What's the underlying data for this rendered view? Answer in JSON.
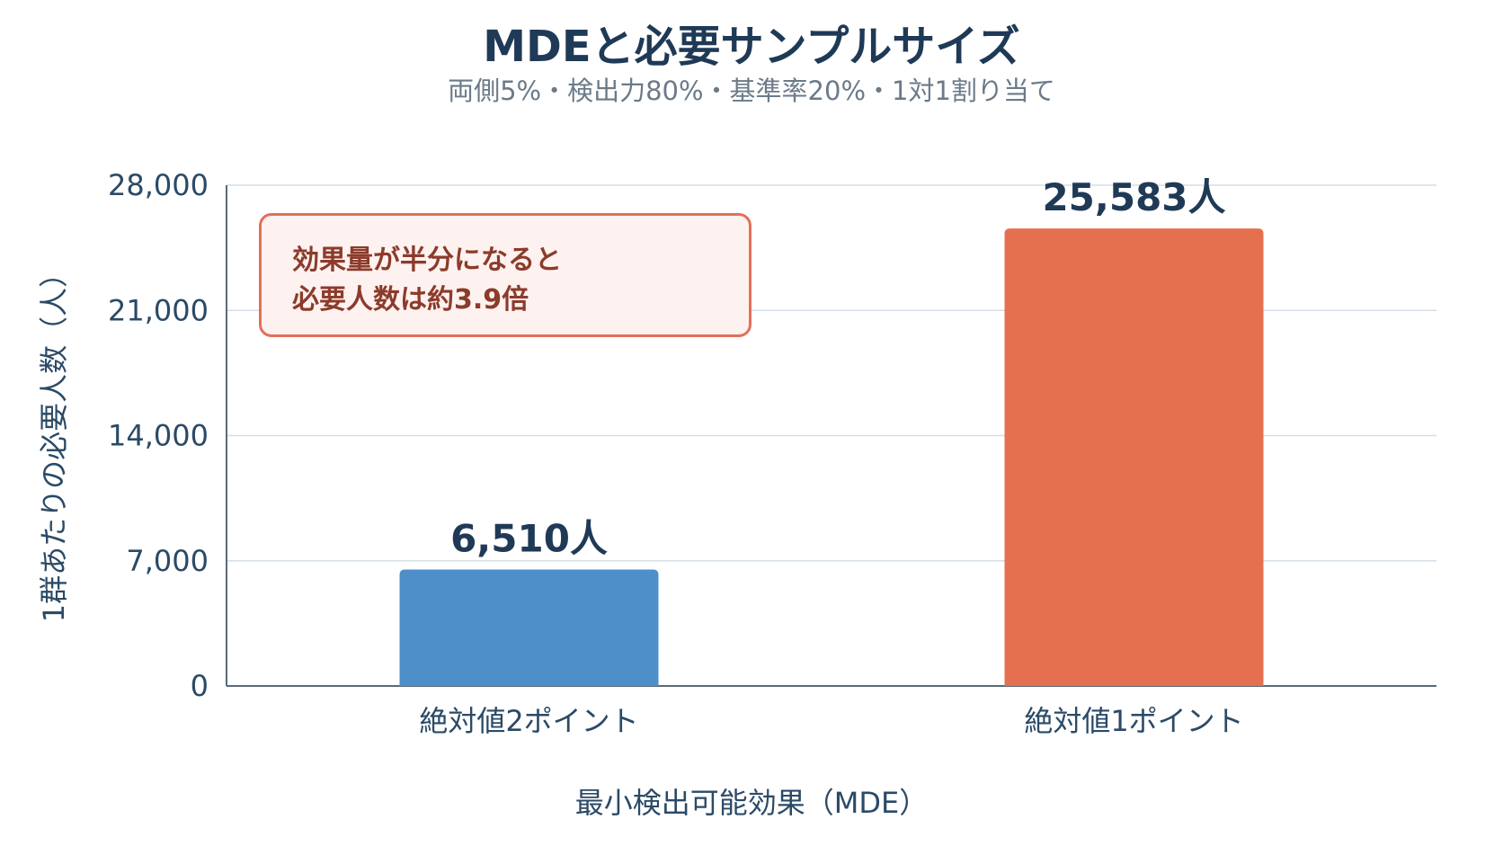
{
  "chart_data": {
    "type": "bar",
    "title": "MDEと必要サンプルサイズ",
    "subtitle": "両側5%・検出力80%・基準率20%・1対1割り当て",
    "xlabel": "最小検出可能効果（MDE）",
    "ylabel": "1群あたりの必要人数（人）",
    "categories": [
      "絶対値2ポイント",
      "絶対値1ポイント"
    ],
    "values": [
      6510,
      25583
    ],
    "data_labels": [
      "6,510人",
      "25,583人"
    ],
    "colors": [
      "#4f8fc9",
      "#e5704f"
    ],
    "ylim": [
      0,
      28000
    ],
    "yticks": [
      0,
      7000,
      14000,
      21000,
      28000
    ],
    "ytick_labels": [
      "0",
      "7,000",
      "14,000",
      "21,000",
      "28,000"
    ],
    "grid": true,
    "annotation": {
      "line1": "効果量が半分になると",
      "line2": "必要人数は約3.9倍"
    }
  }
}
